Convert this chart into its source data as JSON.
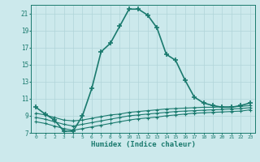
{
  "xlabel": "Humidex (Indice chaleur)",
  "ylabel": "",
  "bg_color": "#cce9ec",
  "grid_color": "#b0d4d8",
  "line_color": "#1a7a6e",
  "xlim": [
    -0.5,
    23.5
  ],
  "ylim": [
    7,
    22
  ],
  "yticks": [
    7,
    9,
    11,
    13,
    15,
    17,
    19,
    21
  ],
  "xticks": [
    0,
    1,
    2,
    3,
    4,
    5,
    6,
    7,
    8,
    9,
    10,
    11,
    12,
    13,
    14,
    15,
    16,
    17,
    18,
    19,
    20,
    21,
    22,
    23
  ],
  "line1_x": [
    0,
    1,
    2,
    3,
    4,
    5,
    6,
    7,
    8,
    9,
    10,
    11,
    12,
    13,
    14,
    15,
    16,
    17,
    18,
    19,
    20,
    21,
    22,
    23
  ],
  "line1_y": [
    10.0,
    9.2,
    8.5,
    7.2,
    7.2,
    9.0,
    12.2,
    16.5,
    17.5,
    19.5,
    21.5,
    21.5,
    20.8,
    19.3,
    16.2,
    15.5,
    13.2,
    11.2,
    10.5,
    10.2,
    10.0,
    10.0,
    10.2,
    10.5
  ],
  "line2_x": [
    0,
    1,
    2,
    3,
    4,
    5,
    6,
    7,
    8,
    9,
    10,
    11,
    12,
    13,
    14,
    15,
    16,
    17,
    18,
    19,
    20,
    21,
    22,
    23
  ],
  "line2_y": [
    9.3,
    9.1,
    8.8,
    8.5,
    8.4,
    8.5,
    8.7,
    8.9,
    9.1,
    9.2,
    9.4,
    9.5,
    9.6,
    9.7,
    9.8,
    9.85,
    9.9,
    9.95,
    10.0,
    10.0,
    10.05,
    10.05,
    10.1,
    10.2
  ],
  "line3_x": [
    0,
    1,
    2,
    3,
    4,
    5,
    6,
    7,
    8,
    9,
    10,
    11,
    12,
    13,
    14,
    15,
    16,
    17,
    18,
    19,
    20,
    21,
    22,
    23
  ],
  "line3_y": [
    8.8,
    8.6,
    8.3,
    8.0,
    7.8,
    8.0,
    8.2,
    8.4,
    8.6,
    8.8,
    9.0,
    9.1,
    9.2,
    9.3,
    9.4,
    9.5,
    9.55,
    9.6,
    9.65,
    9.7,
    9.75,
    9.8,
    9.85,
    9.95
  ],
  "line4_x": [
    0,
    1,
    2,
    3,
    4,
    5,
    6,
    7,
    8,
    9,
    10,
    11,
    12,
    13,
    14,
    15,
    16,
    17,
    18,
    19,
    20,
    21,
    22,
    23
  ],
  "line4_y": [
    8.3,
    8.1,
    7.8,
    7.5,
    7.3,
    7.5,
    7.7,
    7.9,
    8.1,
    8.3,
    8.5,
    8.65,
    8.75,
    8.85,
    9.0,
    9.1,
    9.2,
    9.3,
    9.35,
    9.4,
    9.45,
    9.5,
    9.55,
    9.7
  ]
}
